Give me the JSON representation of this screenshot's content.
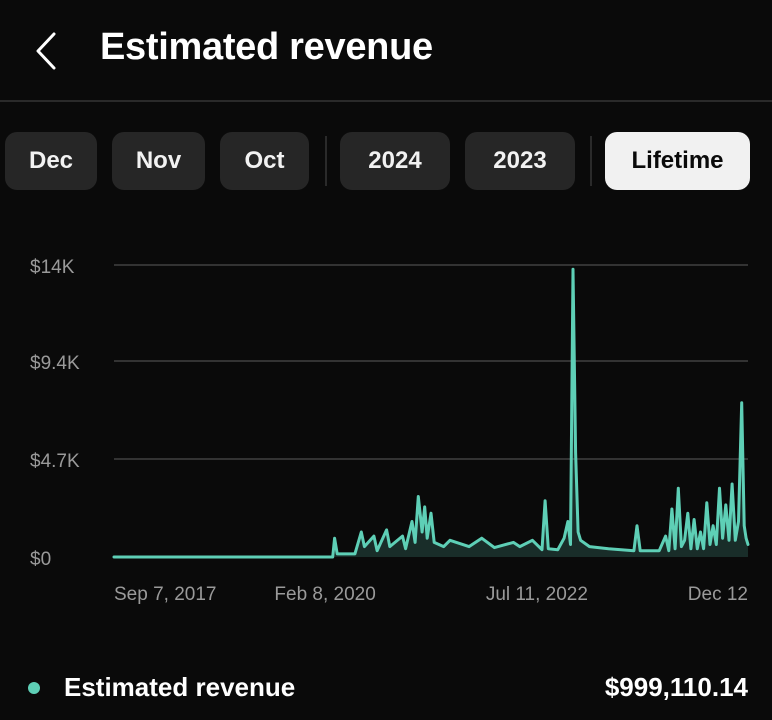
{
  "header": {
    "title": "Estimated revenue",
    "back_icon": "chevron-left-icon"
  },
  "filters": {
    "chips": [
      {
        "label": "Dec",
        "active": false
      },
      {
        "label": "Nov",
        "active": false
      },
      {
        "label": "Oct",
        "active": false
      },
      {
        "label": "2024",
        "active": false
      },
      {
        "label": "2023",
        "active": false
      },
      {
        "label": "Lifetime",
        "active": true
      }
    ]
  },
  "colors": {
    "background": "#0a0a0a",
    "accent": "#5ecfb6",
    "chip_bg": "#262626",
    "chip_active_bg": "#f1f1f1",
    "grid": "#333333",
    "axis_text": "#9a9a9a"
  },
  "chart_data": {
    "type": "line",
    "title": "Estimated revenue",
    "xlabel": "",
    "ylabel": "",
    "ylim": [
      0,
      14000
    ],
    "yticks": [
      {
        "value": 0,
        "label": "$0"
      },
      {
        "value": 4700,
        "label": "$4.7K"
      },
      {
        "value": 9400,
        "label": "$9.4K"
      },
      {
        "value": 14000,
        "label": "$14K"
      }
    ],
    "xticks": [
      {
        "value": 0.0,
        "label": "Sep 7, 2017"
      },
      {
        "value": 0.333,
        "label": "Feb 8, 2020"
      },
      {
        "value": 0.667,
        "label": "Jul 11, 2022"
      },
      {
        "value": 1.0,
        "label": "Dec 12"
      }
    ],
    "xlim": [
      0,
      1
    ],
    "grid": true,
    "series": [
      {
        "name": "Estimated revenue",
        "points": [
          [
            0.0,
            0
          ],
          [
            0.3,
            0
          ],
          [
            0.345,
            0
          ],
          [
            0.348,
            900
          ],
          [
            0.352,
            150
          ],
          [
            0.38,
            150
          ],
          [
            0.39,
            1200
          ],
          [
            0.395,
            500
          ],
          [
            0.41,
            1000
          ],
          [
            0.415,
            300
          ],
          [
            0.43,
            1300
          ],
          [
            0.435,
            500
          ],
          [
            0.455,
            1000
          ],
          [
            0.46,
            400
          ],
          [
            0.47,
            1700
          ],
          [
            0.475,
            700
          ],
          [
            0.48,
            2900
          ],
          [
            0.486,
            1200
          ],
          [
            0.49,
            2400
          ],
          [
            0.494,
            900
          ],
          [
            0.5,
            2100
          ],
          [
            0.505,
            700
          ],
          [
            0.52,
            500
          ],
          [
            0.53,
            800
          ],
          [
            0.56,
            500
          ],
          [
            0.58,
            900
          ],
          [
            0.6,
            450
          ],
          [
            0.63,
            700
          ],
          [
            0.64,
            500
          ],
          [
            0.66,
            800
          ],
          [
            0.675,
            350
          ],
          [
            0.68,
            2700
          ],
          [
            0.685,
            400
          ],
          [
            0.7,
            350
          ],
          [
            0.71,
            900
          ],
          [
            0.716,
            1700
          ],
          [
            0.72,
            600
          ],
          [
            0.724,
            13800
          ],
          [
            0.728,
            5000
          ],
          [
            0.732,
            1200
          ],
          [
            0.736,
            800
          ],
          [
            0.75,
            500
          ],
          [
            0.78,
            400
          ],
          [
            0.8,
            350
          ],
          [
            0.82,
            300
          ],
          [
            0.825,
            1500
          ],
          [
            0.83,
            300
          ],
          [
            0.86,
            300
          ],
          [
            0.87,
            1000
          ],
          [
            0.875,
            300
          ],
          [
            0.88,
            2300
          ],
          [
            0.885,
            400
          ],
          [
            0.89,
            3300
          ],
          [
            0.895,
            500
          ],
          [
            0.9,
            800
          ],
          [
            0.905,
            2100
          ],
          [
            0.91,
            400
          ],
          [
            0.915,
            1800
          ],
          [
            0.92,
            400
          ],
          [
            0.925,
            1200
          ],
          [
            0.93,
            400
          ],
          [
            0.935,
            2600
          ],
          [
            0.94,
            600
          ],
          [
            0.945,
            1500
          ],
          [
            0.95,
            600
          ],
          [
            0.955,
            3300
          ],
          [
            0.96,
            900
          ],
          [
            0.965,
            2500
          ],
          [
            0.97,
            800
          ],
          [
            0.975,
            3500
          ],
          [
            0.98,
            800
          ],
          [
            0.985,
            1700
          ],
          [
            0.99,
            7400
          ],
          [
            0.994,
            1500
          ],
          [
            0.997,
            900
          ],
          [
            1.0,
            600
          ]
        ]
      }
    ]
  },
  "legend": {
    "label": "Estimated revenue",
    "value": "$999,110.14"
  }
}
